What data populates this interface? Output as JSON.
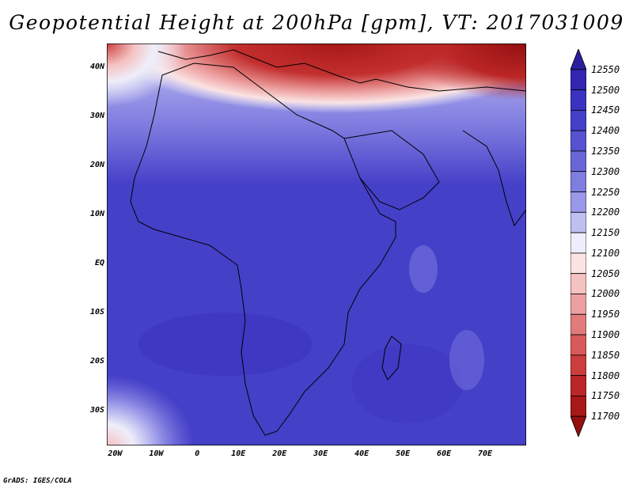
{
  "title": "Geopotential Height at 200hPa [gpm], VT: 2017031009",
  "credit": "GrADS: IGES/COLA",
  "map": {
    "lat_labels": [
      "40N",
      "30N",
      "20N",
      "10N",
      "EQ",
      "10S",
      "20S",
      "30S"
    ],
    "lon_labels": [
      "20W",
      "10W",
      "0",
      "10E",
      "20E",
      "30E",
      "40E",
      "50E",
      "60E",
      "70E"
    ],
    "lat_values": [
      40,
      30,
      20,
      10,
      0,
      -10,
      -20,
      -30
    ],
    "lon_values": [
      -20,
      -10,
      0,
      10,
      20,
      30,
      40,
      50,
      60,
      70
    ],
    "extent": {
      "lon_min": -22,
      "lon_max": 80,
      "lat_min": -37,
      "lat_max": 45
    }
  },
  "colorbar": {
    "labels": [
      "12550",
      "12500",
      "12450",
      "12400",
      "12350",
      "12300",
      "12250",
      "12200",
      "12150",
      "12100",
      "12050",
      "12000",
      "11950",
      "11900",
      "11850",
      "11800",
      "11750",
      "11700"
    ],
    "colors": [
      "#2b1f9e",
      "#3326b0",
      "#3b33bf",
      "#4540c8",
      "#5652d0",
      "#6a66d8",
      "#807de0",
      "#9a98e8",
      "#c0bff2",
      "#eeeefa",
      "#fbe3e3",
      "#f5c2c2",
      "#eda0a0",
      "#e27c7c",
      "#d85a5a",
      "#cc3d3d",
      "#bb2626",
      "#a81818",
      "#941010"
    ]
  }
}
